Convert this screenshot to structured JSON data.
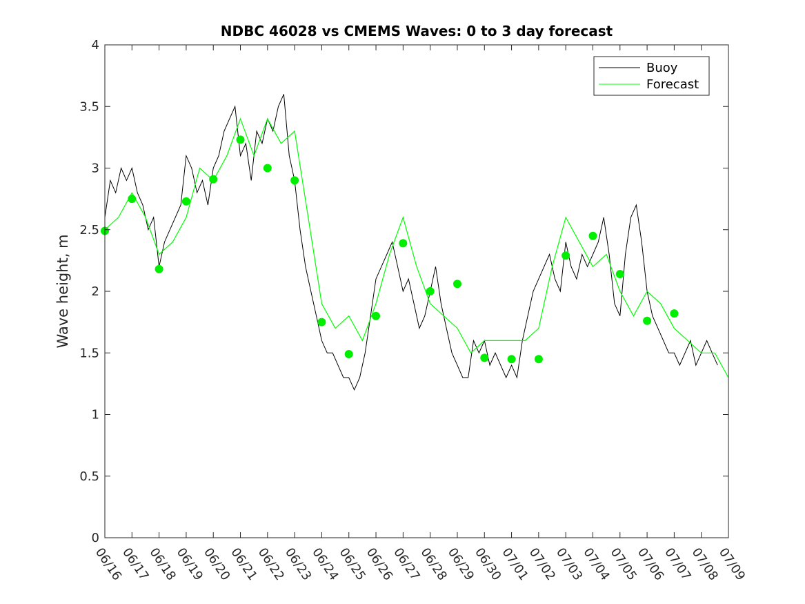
{
  "chart_data": {
    "type": "line",
    "title": "NDBC 46028 vs CMEMS Waves: 0 to 3 day forecast",
    "xlabel": "",
    "ylabel": "Wave height, m",
    "xlim": [
      "06/16",
      "07/09"
    ],
    "ylim": [
      0,
      4
    ],
    "x_ticks": [
      "06/16",
      "06/17",
      "06/18",
      "06/19",
      "06/20",
      "06/21",
      "06/22",
      "06/23",
      "06/24",
      "06/25",
      "06/26",
      "06/27",
      "06/28",
      "06/29",
      "06/30",
      "07/01",
      "07/02",
      "07/03",
      "07/04",
      "07/05",
      "07/06",
      "07/07",
      "07/08",
      "07/09"
    ],
    "y_ticks": [
      0,
      0.5,
      1,
      1.5,
      2,
      2.5,
      3,
      3.5,
      4
    ],
    "grid": false,
    "legend_placement": "top-right",
    "legend": [
      "Buoy",
      "Forecast"
    ],
    "colors": {
      "buoy": "#000000",
      "forecast": "#00ff00",
      "analysis_marker": "#00ee00"
    },
    "series": [
      {
        "name": "Buoy",
        "x_days": [
          0,
          0.2,
          0.4,
          0.6,
          0.8,
          1,
          1.2,
          1.4,
          1.6,
          1.8,
          2,
          2.2,
          2.4,
          2.6,
          2.8,
          3,
          3.2,
          3.4,
          3.6,
          3.8,
          4,
          4.2,
          4.4,
          4.6,
          4.8,
          5,
          5.2,
          5.4,
          5.6,
          5.8,
          6,
          6.2,
          6.4,
          6.6,
          6.8,
          7,
          7.2,
          7.4,
          7.6,
          7.8,
          8,
          8.2,
          8.4,
          8.6,
          8.8,
          9,
          9.2,
          9.4,
          9.6,
          9.8,
          10,
          10.2,
          10.4,
          10.6,
          10.8,
          11,
          11.2,
          11.4,
          11.6,
          11.8,
          12,
          12.2,
          12.4,
          12.6,
          12.8,
          13,
          13.2,
          13.4,
          13.6,
          13.8,
          14,
          14.2,
          14.4,
          14.6,
          14.8,
          15,
          15.2,
          15.4,
          15.6,
          15.8,
          16,
          16.2,
          16.4,
          16.6,
          16.8,
          17,
          17.2,
          17.4,
          17.6,
          17.8,
          18,
          18.2,
          18.4,
          18.6,
          18.8,
          19,
          19.2,
          19.4,
          19.6,
          19.8,
          20,
          20.2,
          20.4,
          20.6,
          20.8,
          21,
          21.2,
          21.4,
          21.6,
          21.8,
          22,
          22.2,
          22.4,
          22.6
        ],
        "values": [
          2.6,
          2.9,
          2.8,
          3.0,
          2.9,
          3.0,
          2.8,
          2.7,
          2.5,
          2.6,
          2.2,
          2.4,
          2.5,
          2.6,
          2.7,
          3.1,
          3.0,
          2.8,
          2.9,
          2.7,
          3.0,
          3.1,
          3.3,
          3.4,
          3.5,
          3.1,
          3.2,
          2.9,
          3.3,
          3.2,
          3.4,
          3.3,
          3.5,
          3.6,
          3.1,
          2.9,
          2.5,
          2.2,
          2.0,
          1.8,
          1.6,
          1.5,
          1.5,
          1.4,
          1.3,
          1.3,
          1.2,
          1.3,
          1.5,
          1.8,
          2.1,
          2.2,
          2.3,
          2.4,
          2.2,
          2.0,
          2.1,
          1.9,
          1.7,
          1.8,
          2.0,
          2.2,
          1.9,
          1.7,
          1.5,
          1.4,
          1.3,
          1.3,
          1.6,
          1.5,
          1.6,
          1.4,
          1.5,
          1.4,
          1.3,
          1.4,
          1.3,
          1.6,
          1.8,
          2.0,
          2.1,
          2.2,
          2.3,
          2.1,
          2.0,
          2.4,
          2.2,
          2.1,
          2.3,
          2.2,
          2.3,
          2.4,
          2.6,
          2.3,
          1.9,
          1.8,
          2.3,
          2.6,
          2.7,
          2.4,
          2.0,
          1.8,
          1.7,
          1.6,
          1.5,
          1.5,
          1.4,
          1.5,
          1.6,
          1.4,
          1.5,
          1.6,
          1.5,
          1.4
        ]
      },
      {
        "name": "Forecast",
        "x_days": [
          0,
          0.5,
          1,
          1.5,
          2,
          2.5,
          3,
          3.5,
          4,
          4.5,
          5,
          5.5,
          6,
          6.5,
          7,
          7.5,
          8,
          8.5,
          9,
          9.5,
          10,
          10.5,
          11,
          11.5,
          12,
          12.5,
          13,
          13.5,
          14,
          14.5,
          15,
          15.5,
          16,
          16.5,
          17,
          17.5,
          18,
          18.5,
          19,
          19.5,
          20,
          20.5,
          21,
          21.5,
          22,
          22.5,
          23
        ],
        "values": [
          2.5,
          2.6,
          2.8,
          2.6,
          2.3,
          2.4,
          2.6,
          3.0,
          2.9,
          3.1,
          3.4,
          3.1,
          3.4,
          3.2,
          3.3,
          2.6,
          1.9,
          1.7,
          1.8,
          1.6,
          1.9,
          2.3,
          2.6,
          2.2,
          1.9,
          1.8,
          1.7,
          1.5,
          1.6,
          1.6,
          1.6,
          1.6,
          1.7,
          2.2,
          2.6,
          2.4,
          2.2,
          2.3,
          2.0,
          1.8,
          2.0,
          1.9,
          1.7,
          1.6,
          1.5,
          1.5,
          1.3
        ]
      }
    ],
    "analysis_points": {
      "x_days": [
        0,
        1,
        2,
        3,
        4,
        5,
        6,
        7,
        8,
        9,
        10,
        11,
        12,
        13,
        14,
        15,
        16,
        17,
        18,
        19,
        20,
        21
      ],
      "values": [
        2.49,
        2.75,
        2.18,
        2.73,
        2.91,
        3.23,
        3.0,
        2.9,
        1.75,
        1.49,
        1.8,
        2.39,
        2.0,
        2.06,
        1.46,
        1.45,
        1.45,
        2.29,
        2.45,
        2.14,
        1.76,
        1.82
      ]
    }
  }
}
